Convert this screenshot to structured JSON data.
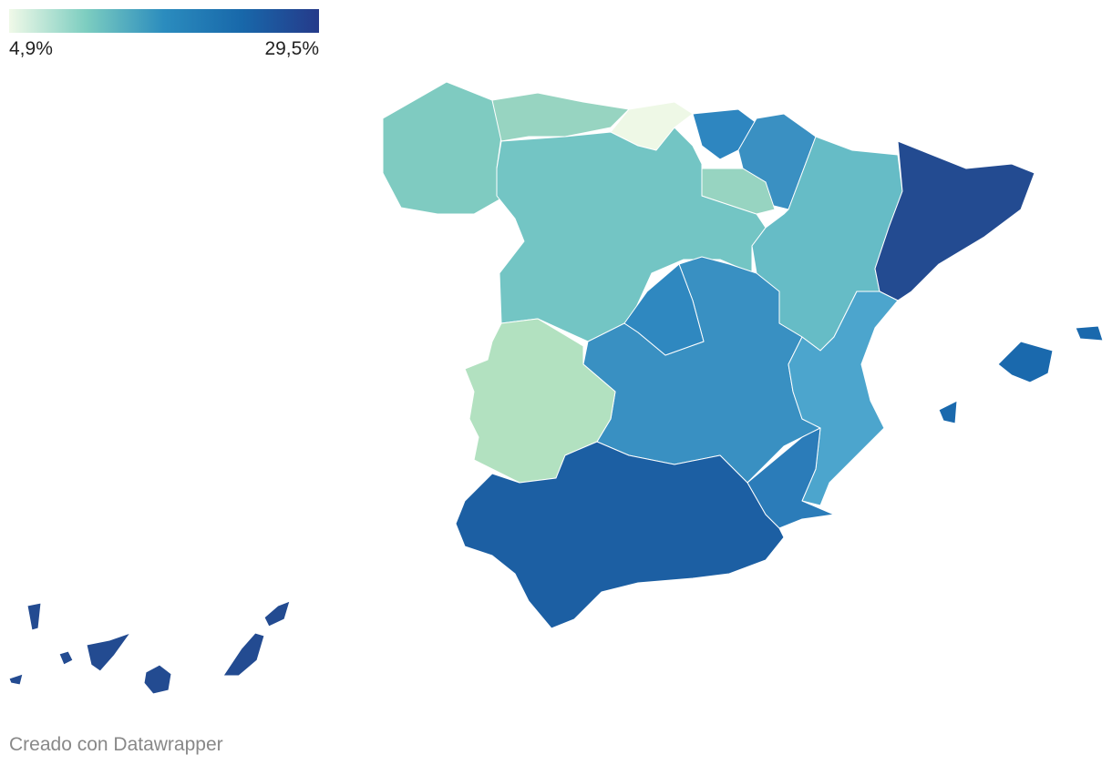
{
  "legend": {
    "labels": [
      "4,9%",
      "29,5%"
    ],
    "colors": [
      "#f0f9e8",
      "#7ccdc0",
      "#2b8cbe",
      "#1868aa",
      "#253a8a"
    ]
  },
  "footer": "Creado con Datawrapper"
}
